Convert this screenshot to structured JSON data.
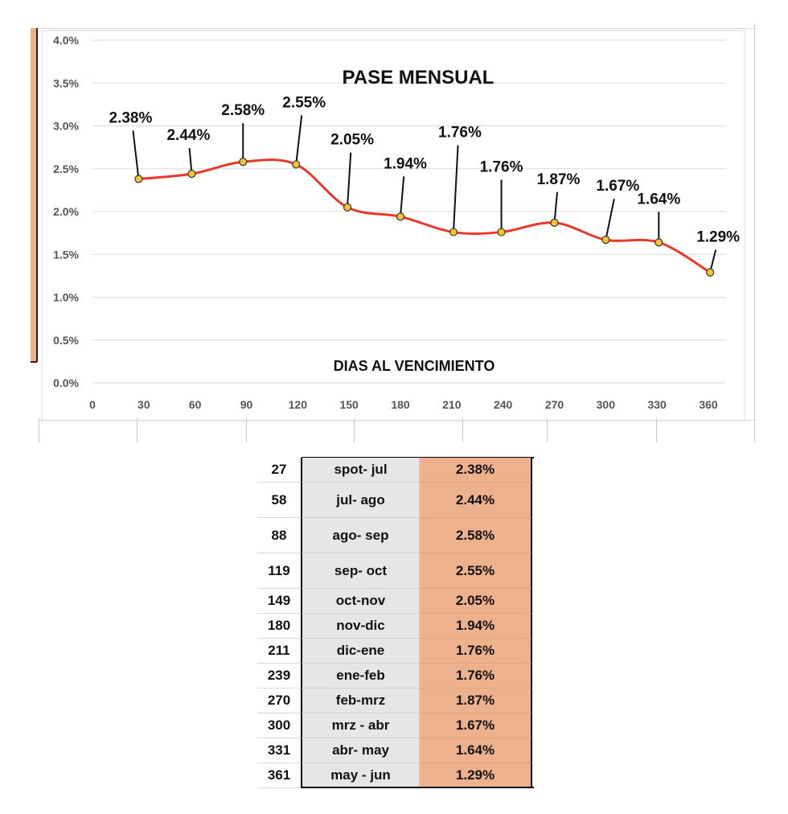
{
  "chart_data": {
    "type": "line",
    "title": "PASE MENSUAL",
    "xlabel": "DIAS AL VENCIMIENTO",
    "ylabel": "",
    "x_ticks": [
      0,
      30,
      60,
      90,
      120,
      150,
      180,
      210,
      240,
      270,
      300,
      330,
      360
    ],
    "y_ticks": [
      "0.0%",
      "0.5%",
      "1.0%",
      "1.5%",
      "2.0%",
      "2.5%",
      "3.0%",
      "3.5%",
      "4.0%"
    ],
    "xlim": [
      0,
      360
    ],
    "ylim": [
      0,
      4.0
    ],
    "grid": true,
    "series": [
      {
        "name": "Pase mensual",
        "color": "#e8392b",
        "marker_color": "#f5c431",
        "x": [
          27,
          58,
          88,
          119,
          149,
          180,
          211,
          239,
          270,
          300,
          331,
          361
        ],
        "values": [
          2.38,
          2.44,
          2.58,
          2.55,
          2.05,
          1.94,
          1.76,
          1.76,
          1.87,
          1.67,
          1.64,
          1.29
        ],
        "labels": [
          "2.38%",
          "2.44%",
          "2.58%",
          "2.55%",
          "2.05%",
          "1.94%",
          "1.76%",
          "1.76%",
          "1.87%",
          "1.67%",
          "1.64%",
          "1.29%"
        ]
      }
    ]
  },
  "table": {
    "rows": [
      {
        "days": "27",
        "period": "spot- jul",
        "rate": "2.38%"
      },
      {
        "days": "58",
        "period": "jul- ago",
        "rate": "2.44%"
      },
      {
        "days": "88",
        "period": "ago- sep",
        "rate": "2.58%"
      },
      {
        "days": "119",
        "period": "sep- oct",
        "rate": "2.55%"
      },
      {
        "days": "149",
        "period": "oct-nov",
        "rate": "2.05%"
      },
      {
        "days": "180",
        "period": "nov-dic",
        "rate": "1.94%"
      },
      {
        "days": "211",
        "period": "dic-ene",
        "rate": "1.76%"
      },
      {
        "days": "239",
        "period": "ene-feb",
        "rate": "1.76%"
      },
      {
        "days": "270",
        "period": "feb-mrz",
        "rate": "1.87%"
      },
      {
        "days": "300",
        "period": "mrz - abr",
        "rate": "1.67%"
      },
      {
        "days": "331",
        "period": "abr- may",
        "rate": "1.64%"
      },
      {
        "days": "361",
        "period": "may - jun",
        "rate": "1.29%"
      }
    ]
  },
  "colors": {
    "line": "#e8392b",
    "marker": "#f5c431",
    "rate_fill": "#eeb18d",
    "period_fill": "#e6e6e6",
    "left_bar": "#eeb18d"
  }
}
